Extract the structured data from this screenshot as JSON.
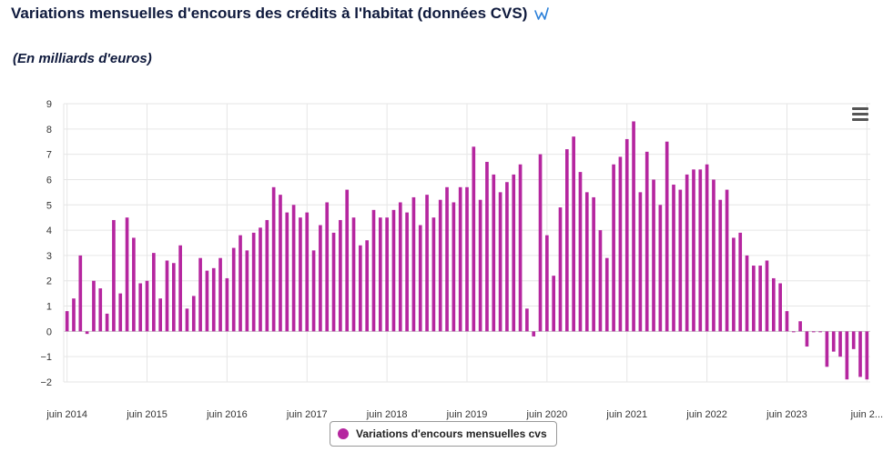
{
  "header": {
    "title": "Variations mensuelles d'encours des crédits à l'habitat (données CVS)",
    "subtitle": "(En milliards d'euros)"
  },
  "icons": {
    "title_icon": "w-logo-icon",
    "menu_icon": "hamburger-menu-icon"
  },
  "colors": {
    "series": "#b5269f",
    "grid": "#e6e6e6",
    "text": "#0f1a3d"
  },
  "chart_data": {
    "type": "bar",
    "title": "Variations mensuelles d'encours des crédits à l'habitat (données CVS)",
    "subtitle": "(En milliards d'euros)",
    "ylim": [
      -2,
      9
    ],
    "yticks": [
      "9",
      "8",
      "7",
      "6",
      "5",
      "4",
      "3",
      "2",
      "1",
      "0",
      "−1",
      "−2"
    ],
    "grid": true,
    "legend_position": "bottom-center",
    "x_tick_labels": [
      "juin 2014",
      "juin 2015",
      "juin 2016",
      "juin 2017",
      "juin 2018",
      "juin 2019",
      "juin 2020",
      "juin 2021",
      "juin 2022",
      "juin 2023",
      "juin 2..."
    ],
    "series": [
      {
        "name": "Variations d'encours mensuelles cvs",
        "color": "#b5269f",
        "values": [
          0.8,
          1.3,
          3.0,
          -0.1,
          2.0,
          1.7,
          0.7,
          4.4,
          1.5,
          4.5,
          3.7,
          1.9,
          2.0,
          3.1,
          1.3,
          2.8,
          2.7,
          3.4,
          0.9,
          1.4,
          2.9,
          2.4,
          2.5,
          2.9,
          2.1,
          3.3,
          3.8,
          3.2,
          3.9,
          4.1,
          4.4,
          5.7,
          5.4,
          4.7,
          5.0,
          4.5,
          4.7,
          3.2,
          4.2,
          5.1,
          3.9,
          4.4,
          5.6,
          4.5,
          3.4,
          3.6,
          4.8,
          4.5,
          4.5,
          4.8,
          5.1,
          4.7,
          5.3,
          4.2,
          5.4,
          4.5,
          5.2,
          5.7,
          5.1,
          5.7,
          5.7,
          7.3,
          5.2,
          6.7,
          6.2,
          5.5,
          5.9,
          6.2,
          6.6,
          0.9,
          -0.2,
          7.0,
          3.8,
          2.2,
          4.9,
          7.2,
          7.7,
          6.3,
          5.5,
          5.3,
          4.0,
          2.9,
          6.6,
          6.9,
          7.6,
          8.3,
          5.5,
          7.1,
          6.0,
          5.0,
          7.5,
          5.8,
          5.6,
          6.2,
          6.4,
          6.4,
          6.6,
          6.0,
          5.2,
          5.6,
          3.7,
          3.9,
          3.0,
          2.6,
          2.6,
          2.8,
          2.1,
          1.9,
          0.8,
          0.0,
          0.4,
          -0.6,
          0.0,
          0.0,
          -1.4,
          -0.8,
          -1.0,
          -1.9,
          -0.7,
          -1.8,
          -1.9
        ]
      }
    ]
  },
  "legend": {
    "label": "Variations d'encours mensuelles cvs"
  }
}
